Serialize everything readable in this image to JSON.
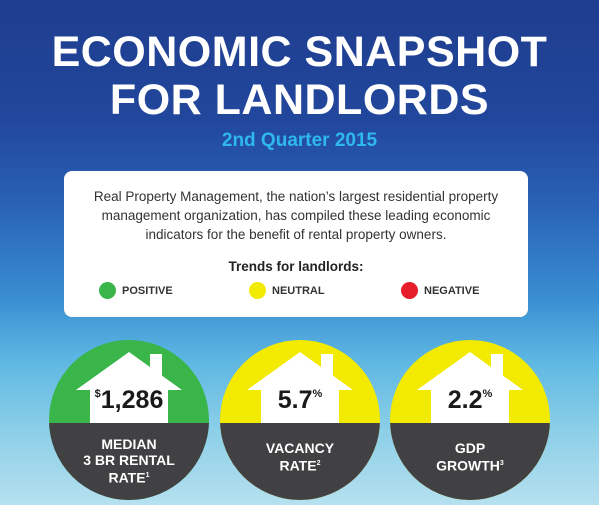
{
  "header": {
    "title_line1": "ECONOMIC SNAPSHOT",
    "title_line2": "FOR LANDLORDS",
    "subtitle": "2nd Quarter 2015"
  },
  "intro": {
    "text": "Real Property Management, the nation’s largest residential property management organization, has compiled these leading economic indicators for the benefit of rental property owners.",
    "trends_label": "Trends for landlords:"
  },
  "legend": [
    {
      "label": "POSITIVE",
      "color": "#39b54a"
    },
    {
      "label": "NEUTRAL",
      "color": "#f2ea00"
    },
    {
      "label": "NEGATIVE",
      "color": "#e61e2b"
    }
  ],
  "indicators": [
    {
      "prefix": "$",
      "value": "1,286",
      "suffix": "",
      "label_line1": "MEDIAN",
      "label_line2": "3 BR RENTAL",
      "label_line3": "RATE",
      "footnote": "1",
      "trend": "positive",
      "color": "#39b54a"
    },
    {
      "prefix": "",
      "value": "5.7",
      "suffix": "%",
      "label_line1": "VACANCY",
      "label_line2": "RATE",
      "label_line3": "",
      "footnote": "2",
      "trend": "neutral",
      "color": "#f2ea00"
    },
    {
      "prefix": "",
      "value": "2.2",
      "suffix": "%",
      "label_line1": "GDP",
      "label_line2": "GROWTH",
      "label_line3": "",
      "footnote": "3",
      "trend": "neutral",
      "color": "#f2ea00"
    }
  ]
}
